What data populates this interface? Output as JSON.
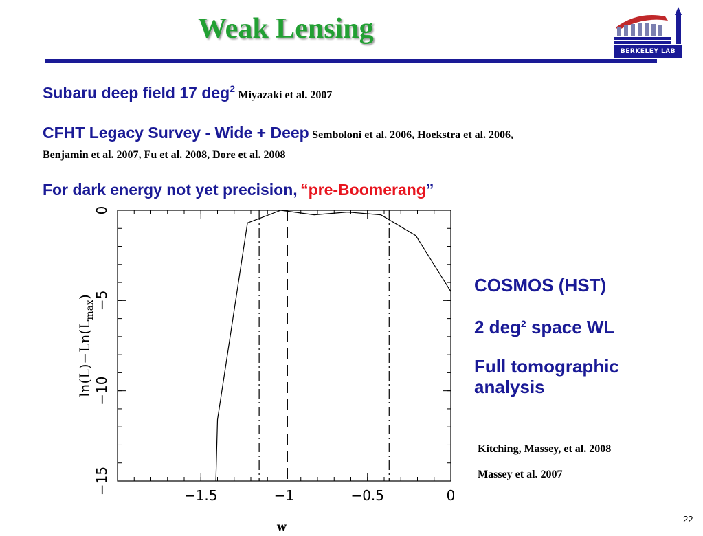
{
  "title": "Weak Lensing",
  "logo_text": "BERKELEY LAB",
  "lines": {
    "subaru": {
      "text": "Subaru deep field 17 deg",
      "sup": "2",
      "ref": "Miyazaki et al. 2007"
    },
    "cfht": {
      "text": "CFHT Legacy Survey - Wide + Deep",
      "ref1": "Semboloni et al. 2006, Hoekstra et al. 2006,",
      "ref2": "Benjamin et al. 2007, Fu et al. 2008, Dore et al. 2008"
    },
    "dark_energy": {
      "text": "For dark energy not yet precision,",
      "open_quote": "“",
      "highlight": "pre-Boomerang",
      "close_quote": "”"
    }
  },
  "sidebar": {
    "cosmos": "COSMOS (HST)",
    "area_prefix": "2 deg",
    "area_sup": "2",
    "area_suffix": " space WL",
    "full1": "Full tomographic",
    "full2": "analysis",
    "cite1": "Kitching, Massey, et al. 2008",
    "cite2": "Massey et al. 2007"
  },
  "page_number": "22",
  "colors": {
    "title": "#22a033",
    "text": "#1a1a96",
    "highlight": "#e8141e"
  },
  "chart_data": {
    "type": "line",
    "xlabel": "w",
    "ylabel": "ln(L)−Ln(L",
    "ylabel_sub": "max",
    "ylabel_end": ")",
    "xlim": [
      -2.0,
      0
    ],
    "ylim": [
      -15,
      0
    ],
    "xticks": [
      -1.5,
      -1,
      -0.5,
      0
    ],
    "xtick_labels": [
      "−1.5",
      "−1",
      "−0.5",
      "0"
    ],
    "yticks": [
      0,
      -5,
      -10,
      -15
    ],
    "ytick_labels": [
      "0",
      "−5",
      "−10",
      "−15"
    ],
    "series": [
      {
        "x": [
          -1.41,
          -1.4,
          -1.22,
          -1.02,
          -0.82,
          -0.62,
          -0.42,
          -0.21,
          0.0
        ],
        "y": [
          -15.0,
          -11.6,
          -0.7,
          0.0,
          -0.25,
          -0.1,
          -0.25,
          -1.4,
          -4.5
        ]
      }
    ],
    "vlines": [
      {
        "x": -1.15,
        "style": "dashdot"
      },
      {
        "x": -0.98,
        "style": "dashed"
      },
      {
        "x": -0.37,
        "style": "dashdot"
      }
    ]
  }
}
